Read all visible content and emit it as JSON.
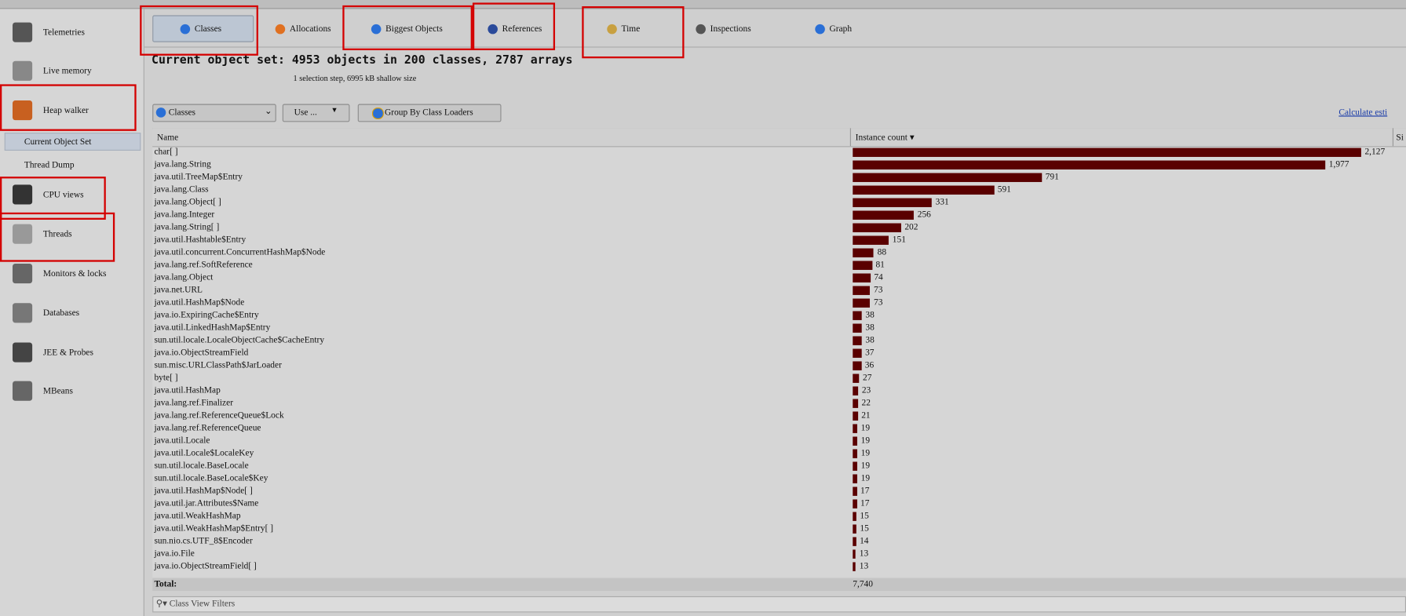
{
  "sidebar": {
    "items": [
      "Telemetries",
      "Live memory",
      "Heap walker",
      "CPU views",
      "Threads",
      "Monitors & locks",
      "Databases",
      "JEE & Probes",
      "MBeans"
    ],
    "subitems": [
      "Current Object Set",
      "Thread Dump"
    ]
  },
  "tabs": [
    "Classes",
    "Allocations",
    "Biggest Objects",
    "References",
    "Time",
    "Inspections",
    "Graph"
  ],
  "header": {
    "title": "Current object set: 4953 objects in 200 classes, 2787 arrays",
    "subtitle": "1 selection step, 6995 kB shallow size"
  },
  "toolbar": {
    "view": "Classes",
    "use": "Use ...",
    "group": "Group By Class Loaders",
    "link": "Calculate esti"
  },
  "table": {
    "columns": [
      "Name",
      "Instance count",
      "Si"
    ],
    "rows": [
      {
        "name": "char[ ]",
        "count": {
          "value": 2127,
          "label": "2,127"
        }
      },
      {
        "name": "java.lang.String",
        "count": {
          "value": 1977,
          "label": "1,977"
        }
      },
      {
        "name": "java.util.TreeMap$Entry",
        "count": 791
      },
      {
        "name": "java.lang.Class",
        "count": 591
      },
      {
        "name": "java.lang.Object[ ]",
        "count": 331
      },
      {
        "name": "java.lang.Integer",
        "count": 256
      },
      {
        "name": "java.lang.String[ ]",
        "count": 202
      },
      {
        "name": "java.util.Hashtable$Entry",
        "count": 151
      },
      {
        "name": "java.util.concurrent.ConcurrentHashMap$Node",
        "count": 88
      },
      {
        "name": "java.lang.ref.SoftReference",
        "count": 81
      },
      {
        "name": "java.lang.Object",
        "count": 74
      },
      {
        "name": "java.net.URL",
        "count": 73
      },
      {
        "name": "java.util.HashMap$Node",
        "count": 73
      },
      {
        "name": "java.io.ExpiringCache$Entry",
        "count": 38
      },
      {
        "name": "java.util.LinkedHashMap$Entry",
        "count": 38
      },
      {
        "name": "sun.util.locale.LocaleObjectCache$CacheEntry",
        "count": 38
      },
      {
        "name": "java.io.ObjectStreamField",
        "count": 37
      },
      {
        "name": "sun.misc.URLClassPath$JarLoader",
        "count": 36
      },
      {
        "name": "byte[ ]",
        "count": 27
      },
      {
        "name": "java.util.HashMap",
        "count": 23
      },
      {
        "name": "java.lang.ref.Finalizer",
        "count": 22
      },
      {
        "name": "java.lang.ref.ReferenceQueue$Lock",
        "count": 21
      },
      {
        "name": "java.lang.ref.ReferenceQueue",
        "count": 19
      },
      {
        "name": "java.util.Locale",
        "count": 19
      },
      {
        "name": "java.util.Locale$LocaleKey",
        "count": 19
      },
      {
        "name": "sun.util.locale.BaseLocale",
        "count": 19
      },
      {
        "name": "sun.util.locale.BaseLocale$Key",
        "count": 19
      },
      {
        "name": "java.util.HashMap$Node[ ]",
        "count": 17
      },
      {
        "name": "java.util.jar.Attributes$Name",
        "count": 17
      },
      {
        "name": "java.util.WeakHashMap",
        "count": 15
      },
      {
        "name": "java.util.WeakHashMap$Entry[ ]",
        "count": 15
      },
      {
        "name": "sun.nio.cs.UTF_8$Encoder",
        "count": 14
      },
      {
        "name": "java.io.File",
        "count": 13
      },
      {
        "name": "java.io.ObjectStreamField[ ]",
        "count": 13
      }
    ],
    "total_label": "Total:",
    "total": "7,740"
  },
  "footer": {
    "filter": "Class View Filters"
  }
}
